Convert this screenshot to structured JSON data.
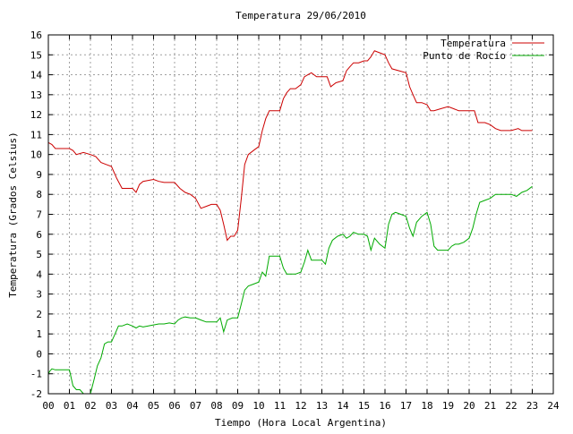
{
  "chart_data": {
    "type": "line",
    "title": "Temperatura 29/06/2010",
    "xlabel": "Tiempo (Hora Local Argentina)",
    "ylabel": "Temperatura (Grados Celsius)",
    "xlim": [
      0,
      24
    ],
    "ylim": [
      -2,
      16
    ],
    "x_ticks": [
      {
        "value": 0,
        "label": "00"
      },
      {
        "value": 1,
        "label": "01"
      },
      {
        "value": 2,
        "label": "02"
      },
      {
        "value": 3,
        "label": "03"
      },
      {
        "value": 4,
        "label": "04"
      },
      {
        "value": 5,
        "label": "05"
      },
      {
        "value": 6,
        "label": "06"
      },
      {
        "value": 7,
        "label": "07"
      },
      {
        "value": 8,
        "label": "08"
      },
      {
        "value": 9,
        "label": "09"
      },
      {
        "value": 10,
        "label": "10"
      },
      {
        "value": 11,
        "label": "11"
      },
      {
        "value": 12,
        "label": "12"
      },
      {
        "value": 13,
        "label": "13"
      },
      {
        "value": 14,
        "label": "14"
      },
      {
        "value": 15,
        "label": "15"
      },
      {
        "value": 16,
        "label": "16"
      },
      {
        "value": 17,
        "label": "17"
      },
      {
        "value": 18,
        "label": "18"
      },
      {
        "value": 19,
        "label": "19"
      },
      {
        "value": 20,
        "label": "20"
      },
      {
        "value": 21,
        "label": "21"
      },
      {
        "value": 22,
        "label": "22"
      },
      {
        "value": 23,
        "label": "23"
      },
      {
        "value": 24,
        "label": "24"
      }
    ],
    "y_ticks": [
      {
        "value": -2,
        "label": "-2"
      },
      {
        "value": -1,
        "label": "-1"
      },
      {
        "value": 0,
        "label": "0"
      },
      {
        "value": 1,
        "label": "1"
      },
      {
        "value": 2,
        "label": "2"
      },
      {
        "value": 3,
        "label": "3"
      },
      {
        "value": 4,
        "label": "4"
      },
      {
        "value": 5,
        "label": "5"
      },
      {
        "value": 6,
        "label": "6"
      },
      {
        "value": 7,
        "label": "7"
      },
      {
        "value": 8,
        "label": "8"
      },
      {
        "value": 9,
        "label": "9"
      },
      {
        "value": 10,
        "label": "10"
      },
      {
        "value": 11,
        "label": "11"
      },
      {
        "value": 12,
        "label": "12"
      },
      {
        "value": 13,
        "label": "13"
      },
      {
        "value": 14,
        "label": "14"
      },
      {
        "value": 15,
        "label": "15"
      },
      {
        "value": 16,
        "label": "16"
      }
    ],
    "grid": true,
    "legend_position": "top-right",
    "series": [
      {
        "name": "Temperatura",
        "color": "#cc0000",
        "points": [
          [
            0.0,
            10.6
          ],
          [
            0.17,
            10.5
          ],
          [
            0.33,
            10.3
          ],
          [
            0.67,
            10.3
          ],
          [
            1.0,
            10.3
          ],
          [
            1.17,
            10.2
          ],
          [
            1.33,
            10.0
          ],
          [
            1.67,
            10.1
          ],
          [
            2.0,
            10.0
          ],
          [
            2.25,
            9.9
          ],
          [
            2.5,
            9.6
          ],
          [
            2.75,
            9.5
          ],
          [
            3.0,
            9.4
          ],
          [
            3.25,
            8.8
          ],
          [
            3.5,
            8.3
          ],
          [
            3.75,
            8.3
          ],
          [
            4.0,
            8.3
          ],
          [
            4.17,
            8.1
          ],
          [
            4.33,
            8.5
          ],
          [
            4.5,
            8.65
          ],
          [
            4.75,
            8.7
          ],
          [
            5.0,
            8.75
          ],
          [
            5.25,
            8.65
          ],
          [
            5.5,
            8.6
          ],
          [
            5.75,
            8.6
          ],
          [
            6.0,
            8.6
          ],
          [
            6.25,
            8.3
          ],
          [
            6.5,
            8.1
          ],
          [
            6.75,
            8.0
          ],
          [
            7.0,
            7.8
          ],
          [
            7.25,
            7.3
          ],
          [
            7.5,
            7.4
          ],
          [
            7.75,
            7.5
          ],
          [
            8.0,
            7.5
          ],
          [
            8.17,
            7.2
          ],
          [
            8.33,
            6.5
          ],
          [
            8.5,
            5.7
          ],
          [
            8.67,
            5.9
          ],
          [
            8.83,
            5.9
          ],
          [
            9.0,
            6.2
          ],
          [
            9.17,
            7.8
          ],
          [
            9.33,
            9.5
          ],
          [
            9.5,
            10.0
          ],
          [
            9.75,
            10.2
          ],
          [
            10.0,
            10.4
          ],
          [
            10.17,
            11.2
          ],
          [
            10.33,
            11.8
          ],
          [
            10.5,
            12.2
          ],
          [
            10.75,
            12.2
          ],
          [
            11.0,
            12.2
          ],
          [
            11.17,
            12.8
          ],
          [
            11.33,
            13.1
          ],
          [
            11.5,
            13.3
          ],
          [
            11.75,
            13.3
          ],
          [
            12.0,
            13.5
          ],
          [
            12.17,
            13.9
          ],
          [
            12.33,
            14.0
          ],
          [
            12.5,
            14.1
          ],
          [
            12.75,
            13.9
          ],
          [
            13.0,
            13.9
          ],
          [
            13.25,
            13.9
          ],
          [
            13.42,
            13.4
          ],
          [
            13.67,
            13.6
          ],
          [
            14.0,
            13.7
          ],
          [
            14.17,
            14.2
          ],
          [
            14.33,
            14.4
          ],
          [
            14.5,
            14.6
          ],
          [
            14.75,
            14.6
          ],
          [
            15.0,
            14.7
          ],
          [
            15.17,
            14.7
          ],
          [
            15.33,
            14.9
          ],
          [
            15.5,
            15.2
          ],
          [
            15.75,
            15.1
          ],
          [
            16.0,
            15.0
          ],
          [
            16.17,
            14.6
          ],
          [
            16.33,
            14.3
          ],
          [
            16.67,
            14.2
          ],
          [
            17.0,
            14.1
          ],
          [
            17.17,
            13.4
          ],
          [
            17.33,
            13.0
          ],
          [
            17.5,
            12.6
          ],
          [
            17.75,
            12.6
          ],
          [
            18.0,
            12.5
          ],
          [
            18.17,
            12.2
          ],
          [
            18.33,
            12.2
          ],
          [
            18.67,
            12.3
          ],
          [
            19.0,
            12.4
          ],
          [
            19.25,
            12.3
          ],
          [
            19.5,
            12.2
          ],
          [
            19.75,
            12.2
          ],
          [
            20.0,
            12.2
          ],
          [
            20.25,
            12.2
          ],
          [
            20.42,
            11.6
          ],
          [
            20.75,
            11.6
          ],
          [
            21.0,
            11.5
          ],
          [
            21.25,
            11.3
          ],
          [
            21.5,
            11.2
          ],
          [
            22.0,
            11.2
          ],
          [
            22.33,
            11.3
          ],
          [
            22.5,
            11.2
          ],
          [
            23.0,
            11.2
          ]
        ]
      },
      {
        "name": "Punto de Rocío",
        "color": "#00aa00",
        "points": [
          [
            0.0,
            -1.0
          ],
          [
            0.08,
            -0.85
          ],
          [
            0.17,
            -0.75
          ],
          [
            0.33,
            -0.8
          ],
          [
            0.5,
            -0.8
          ],
          [
            0.75,
            -0.8
          ],
          [
            1.0,
            -0.8
          ],
          [
            1.17,
            -1.6
          ],
          [
            1.33,
            -1.8
          ],
          [
            1.5,
            -1.8
          ],
          [
            1.67,
            -2.0
          ],
          [
            2.0,
            -2.0
          ],
          [
            2.17,
            -1.3
          ],
          [
            2.33,
            -0.6
          ],
          [
            2.5,
            -0.2
          ],
          [
            2.67,
            0.5
          ],
          [
            2.83,
            0.6
          ],
          [
            3.0,
            0.6
          ],
          [
            3.17,
            1.0
          ],
          [
            3.33,
            1.4
          ],
          [
            3.5,
            1.4
          ],
          [
            3.75,
            1.5
          ],
          [
            4.0,
            1.4
          ],
          [
            4.17,
            1.3
          ],
          [
            4.33,
            1.4
          ],
          [
            4.5,
            1.35
          ],
          [
            4.75,
            1.4
          ],
          [
            5.0,
            1.45
          ],
          [
            5.25,
            1.5
          ],
          [
            5.5,
            1.5
          ],
          [
            5.75,
            1.55
          ],
          [
            6.0,
            1.5
          ],
          [
            6.17,
            1.7
          ],
          [
            6.33,
            1.8
          ],
          [
            6.5,
            1.85
          ],
          [
            6.75,
            1.8
          ],
          [
            7.0,
            1.8
          ],
          [
            7.25,
            1.7
          ],
          [
            7.5,
            1.6
          ],
          [
            7.75,
            1.6
          ],
          [
            8.0,
            1.6
          ],
          [
            8.17,
            1.8
          ],
          [
            8.33,
            1.1
          ],
          [
            8.5,
            1.7
          ],
          [
            8.75,
            1.8
          ],
          [
            9.0,
            1.8
          ],
          [
            9.17,
            2.5
          ],
          [
            9.33,
            3.2
          ],
          [
            9.5,
            3.4
          ],
          [
            9.75,
            3.5
          ],
          [
            10.0,
            3.6
          ],
          [
            10.17,
            4.1
          ],
          [
            10.33,
            3.9
          ],
          [
            10.5,
            4.9
          ],
          [
            10.75,
            4.9
          ],
          [
            11.0,
            4.9
          ],
          [
            11.17,
            4.3
          ],
          [
            11.33,
            4.0
          ],
          [
            11.5,
            4.0
          ],
          [
            11.75,
            4.0
          ],
          [
            12.0,
            4.1
          ],
          [
            12.17,
            4.6
          ],
          [
            12.33,
            5.2
          ],
          [
            12.5,
            4.7
          ],
          [
            12.75,
            4.7
          ],
          [
            13.0,
            4.7
          ],
          [
            13.17,
            4.5
          ],
          [
            13.33,
            5.3
          ],
          [
            13.5,
            5.7
          ],
          [
            13.75,
            5.9
          ],
          [
            14.0,
            6.0
          ],
          [
            14.17,
            5.8
          ],
          [
            14.33,
            5.9
          ],
          [
            14.5,
            6.1
          ],
          [
            14.75,
            6.0
          ],
          [
            15.0,
            6.0
          ],
          [
            15.17,
            5.9
          ],
          [
            15.33,
            5.2
          ],
          [
            15.5,
            5.8
          ],
          [
            15.75,
            5.5
          ],
          [
            16.0,
            5.3
          ],
          [
            16.17,
            6.5
          ],
          [
            16.33,
            7.0
          ],
          [
            16.5,
            7.1
          ],
          [
            16.75,
            7.0
          ],
          [
            17.0,
            6.9
          ],
          [
            17.17,
            6.3
          ],
          [
            17.33,
            5.9
          ],
          [
            17.5,
            6.6
          ],
          [
            17.75,
            6.9
          ],
          [
            18.0,
            7.1
          ],
          [
            18.17,
            6.5
          ],
          [
            18.33,
            5.4
          ],
          [
            18.5,
            5.2
          ],
          [
            18.75,
            5.2
          ],
          [
            19.0,
            5.2
          ],
          [
            19.17,
            5.4
          ],
          [
            19.33,
            5.5
          ],
          [
            19.5,
            5.5
          ],
          [
            19.75,
            5.6
          ],
          [
            20.0,
            5.8
          ],
          [
            20.17,
            6.3
          ],
          [
            20.33,
            7.0
          ],
          [
            20.5,
            7.6
          ],
          [
            20.75,
            7.7
          ],
          [
            21.0,
            7.8
          ],
          [
            21.25,
            8.0
          ],
          [
            21.5,
            8.0
          ],
          [
            21.75,
            8.0
          ],
          [
            22.0,
            8.0
          ],
          [
            22.25,
            7.9
          ],
          [
            22.5,
            8.1
          ],
          [
            22.75,
            8.2
          ],
          [
            23.0,
            8.4
          ]
        ]
      }
    ]
  }
}
